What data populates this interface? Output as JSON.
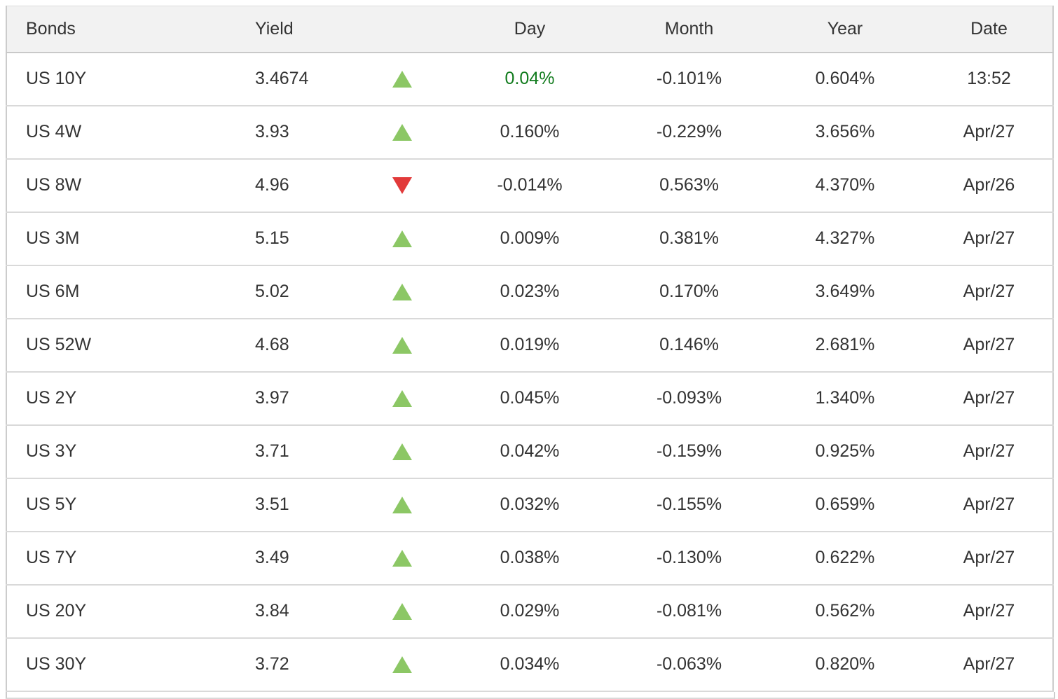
{
  "colors": {
    "up_arrow": "#8cc765",
    "down_arrow": "#e23a3a",
    "positive_day_text": "#117b1d",
    "text": "#333333",
    "header_bg": "#f2f2f2",
    "border_outer": "#cccccc",
    "border_row": "#d9d9d9",
    "border_header": "#c9c9c9",
    "border_top": "#dddddd"
  },
  "table": {
    "columns": [
      {
        "key": "bond",
        "label": "Bonds"
      },
      {
        "key": "yield",
        "label": "Yield"
      },
      {
        "key": "arrow",
        "label": ""
      },
      {
        "key": "day",
        "label": "Day"
      },
      {
        "key": "month",
        "label": "Month"
      },
      {
        "key": "year",
        "label": "Year"
      },
      {
        "key": "date",
        "label": "Date"
      }
    ],
    "rows": [
      {
        "bond": "US 10Y",
        "yield": "3.4674",
        "direction": "up",
        "day": "0.04%",
        "day_highlight": true,
        "month": "-0.101%",
        "year": "0.604%",
        "date": "13:52"
      },
      {
        "bond": "US 4W",
        "yield": "3.93",
        "direction": "up",
        "day": "0.160%",
        "day_highlight": false,
        "month": "-0.229%",
        "year": "3.656%",
        "date": "Apr/27"
      },
      {
        "bond": "US 8W",
        "yield": "4.96",
        "direction": "down",
        "day": "-0.014%",
        "day_highlight": false,
        "month": "0.563%",
        "year": "4.370%",
        "date": "Apr/26"
      },
      {
        "bond": "US 3M",
        "yield": "5.15",
        "direction": "up",
        "day": "0.009%",
        "day_highlight": false,
        "month": "0.381%",
        "year": "4.327%",
        "date": "Apr/27"
      },
      {
        "bond": "US 6M",
        "yield": "5.02",
        "direction": "up",
        "day": "0.023%",
        "day_highlight": false,
        "month": "0.170%",
        "year": "3.649%",
        "date": "Apr/27"
      },
      {
        "bond": "US 52W",
        "yield": "4.68",
        "direction": "up",
        "day": "0.019%",
        "day_highlight": false,
        "month": "0.146%",
        "year": "2.681%",
        "date": "Apr/27"
      },
      {
        "bond": "US 2Y",
        "yield": "3.97",
        "direction": "up",
        "day": "0.045%",
        "day_highlight": false,
        "month": "-0.093%",
        "year": "1.340%",
        "date": "Apr/27"
      },
      {
        "bond": "US 3Y",
        "yield": "3.71",
        "direction": "up",
        "day": "0.042%",
        "day_highlight": false,
        "month": "-0.159%",
        "year": "0.925%",
        "date": "Apr/27"
      },
      {
        "bond": "US 5Y",
        "yield": "3.51",
        "direction": "up",
        "day": "0.032%",
        "day_highlight": false,
        "month": "-0.155%",
        "year": "0.659%",
        "date": "Apr/27"
      },
      {
        "bond": "US 7Y",
        "yield": "3.49",
        "direction": "up",
        "day": "0.038%",
        "day_highlight": false,
        "month": "-0.130%",
        "year": "0.622%",
        "date": "Apr/27"
      },
      {
        "bond": "US 20Y",
        "yield": "3.84",
        "direction": "up",
        "day": "0.029%",
        "day_highlight": false,
        "month": "-0.081%",
        "year": "0.562%",
        "date": "Apr/27"
      },
      {
        "bond": "US 30Y",
        "yield": "3.72",
        "direction": "up",
        "day": "0.034%",
        "day_highlight": false,
        "month": "-0.063%",
        "year": "0.820%",
        "date": "Apr/27"
      }
    ]
  }
}
